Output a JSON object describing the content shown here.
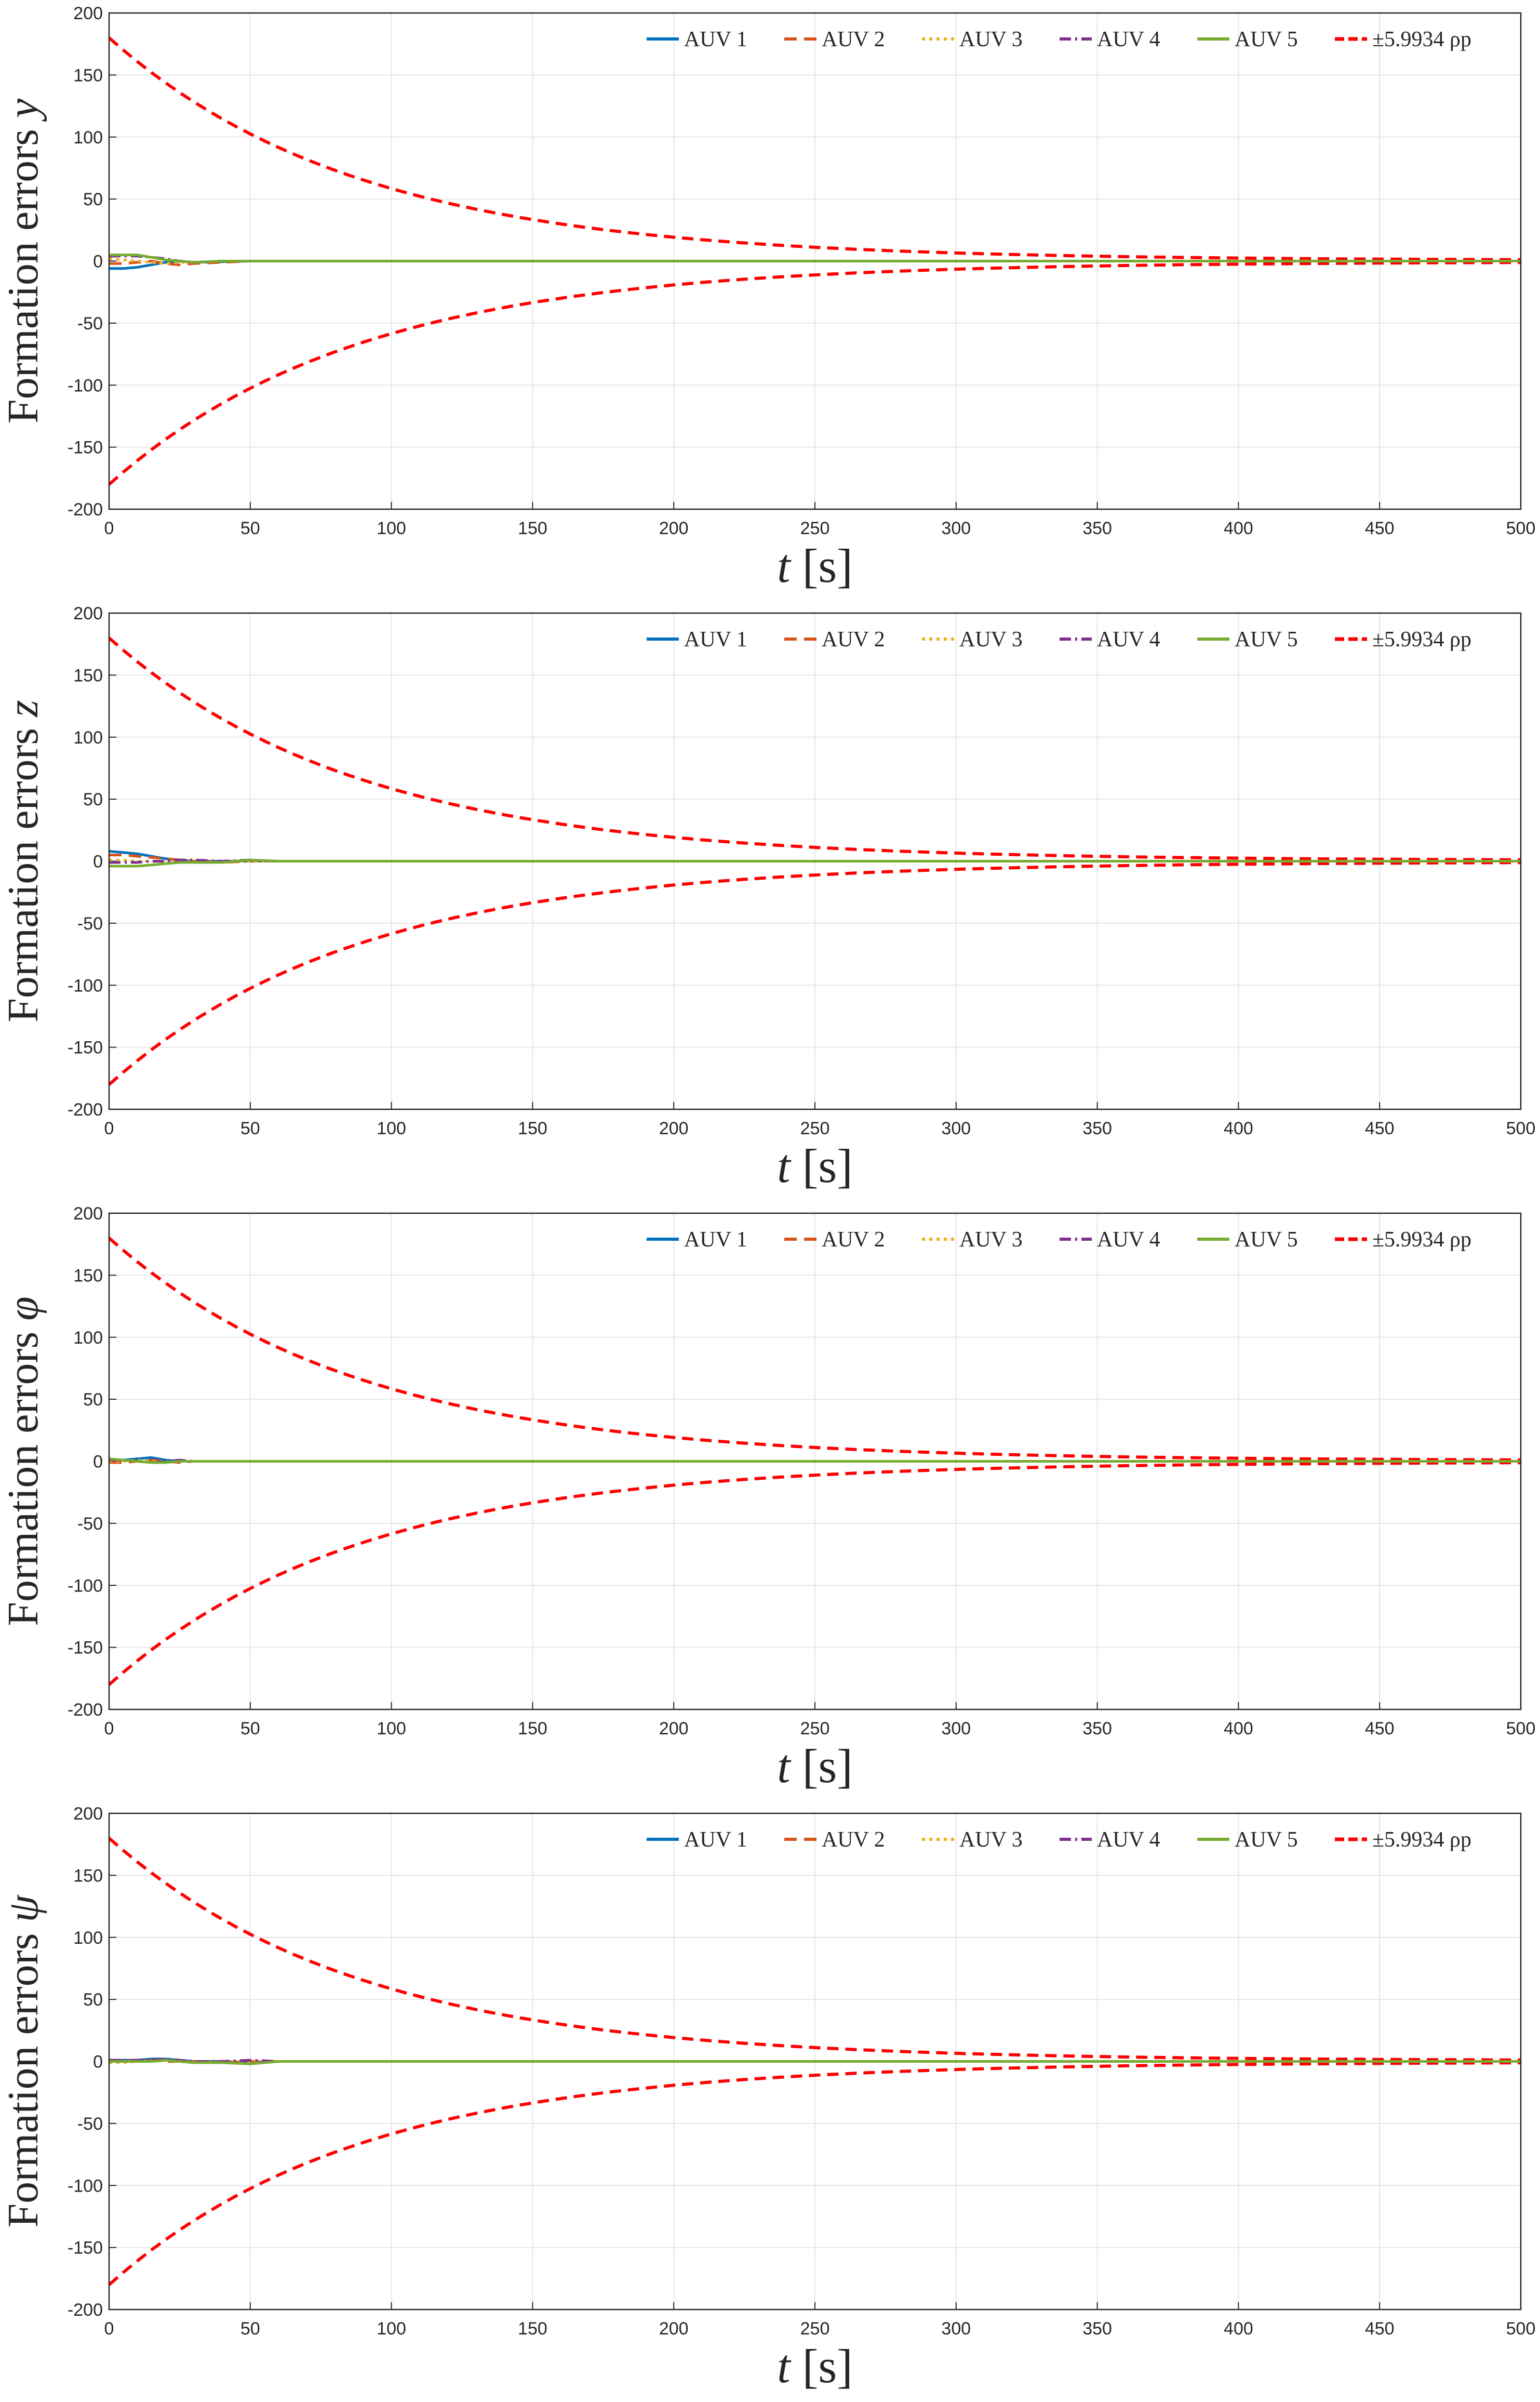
{
  "chart_data": [
    {
      "type": "line",
      "ylabel_text": "Formation errors",
      "ylabel_symbol": "y",
      "xlabel_symbol": "t",
      "xlabel_unit": "[s]",
      "xlim": [
        0,
        500
      ],
      "ylim": [
        -200,
        200
      ],
      "xticks": [
        "0",
        "50",
        "100",
        "150",
        "200",
        "250",
        "300",
        "350",
        "400",
        "450",
        "500"
      ],
      "yticks": [
        "200",
        "150",
        "100",
        "50",
        "0",
        "-50",
        "-100",
        "-150",
        "-200"
      ],
      "grid": true,
      "legend_position": "top-right",
      "legend": [
        "AUV 1",
        "AUV 2",
        "AUV 3",
        "AUV 4",
        "AUV 5",
        "±5.9934 ρp"
      ],
      "bound": {
        "initial": 180,
        "decay_rate": 0.0113,
        "final": 0.5
      },
      "series": [
        {
          "name": "AUV 1",
          "x": [
            0,
            5,
            10,
            15,
            20,
            25,
            30,
            40,
            50,
            60,
            500
          ],
          "y": [
            -6,
            -6,
            -5,
            -3,
            -1,
            0,
            -1,
            -0.5,
            0,
            0,
            0
          ]
        },
        {
          "name": "AUV 2",
          "x": [
            0,
            5,
            10,
            15,
            20,
            25,
            30,
            40,
            50,
            60,
            500
          ],
          "y": [
            -2,
            -2,
            -1,
            0,
            -2,
            -3,
            -2,
            -1,
            0,
            0,
            0
          ]
        },
        {
          "name": "AUV 3",
          "x": [
            0,
            5,
            10,
            15,
            20,
            25,
            30,
            40,
            50,
            60,
            500
          ],
          "y": [
            2,
            1,
            0,
            -1,
            -2,
            -1,
            -1,
            0,
            0,
            0,
            0
          ]
        },
        {
          "name": "AUV 4",
          "x": [
            0,
            5,
            10,
            15,
            20,
            25,
            30,
            40,
            50,
            60,
            500
          ],
          "y": [
            4,
            4,
            4,
            3,
            2,
            0,
            -1,
            0,
            0,
            0,
            0
          ]
        },
        {
          "name": "AUV 5",
          "x": [
            0,
            5,
            10,
            15,
            20,
            25,
            30,
            40,
            50,
            60,
            500
          ],
          "y": [
            5,
            5,
            5,
            3,
            1,
            0,
            -1,
            0,
            0,
            0,
            0
          ]
        }
      ]
    },
    {
      "type": "line",
      "ylabel_text": "Formation errors",
      "ylabel_symbol": "z",
      "xlabel_symbol": "t",
      "xlabel_unit": "[s]",
      "xlim": [
        0,
        500
      ],
      "ylim": [
        -200,
        200
      ],
      "xticks": [
        "0",
        "50",
        "100",
        "150",
        "200",
        "250",
        "300",
        "350",
        "400",
        "450",
        "500"
      ],
      "yticks": [
        "200",
        "150",
        "100",
        "50",
        "0",
        "-50",
        "-100",
        "-150",
        "-200"
      ],
      "grid": true,
      "legend_position": "top-right",
      "legend": [
        "AUV 1",
        "AUV 2",
        "AUV 3",
        "AUV 4",
        "AUV 5",
        "±5.9934 ρp"
      ],
      "bound": {
        "initial": 180,
        "decay_rate": 0.0113,
        "final": 0.5
      },
      "series": [
        {
          "name": "AUV 1",
          "x": [
            0,
            5,
            10,
            15,
            20,
            25,
            30,
            40,
            50,
            60,
            70,
            500
          ],
          "y": [
            8,
            7,
            6,
            4,
            2,
            1,
            0,
            0,
            0,
            0,
            0,
            0
          ]
        },
        {
          "name": "AUV 2",
          "x": [
            0,
            5,
            10,
            15,
            20,
            25,
            30,
            40,
            50,
            60,
            70,
            500
          ],
          "y": [
            5,
            5,
            4,
            3,
            2,
            1,
            0,
            -1,
            0,
            0,
            0,
            0
          ]
        },
        {
          "name": "AUV 3",
          "x": [
            0,
            5,
            10,
            15,
            20,
            25,
            30,
            40,
            50,
            60,
            70,
            500
          ],
          "y": [
            1,
            1,
            0,
            0,
            -1,
            0,
            1,
            0,
            0,
            0,
            0,
            0
          ]
        },
        {
          "name": "AUV 4",
          "x": [
            0,
            5,
            10,
            15,
            20,
            25,
            30,
            40,
            50,
            60,
            70,
            500
          ],
          "y": [
            -1,
            -1,
            -1,
            0,
            0,
            1,
            1,
            0,
            1,
            0,
            0,
            0
          ]
        },
        {
          "name": "AUV 5",
          "x": [
            0,
            5,
            10,
            15,
            20,
            25,
            30,
            40,
            50,
            60,
            70,
            500
          ],
          "y": [
            -4,
            -4,
            -4,
            -3,
            -2,
            -1,
            -1,
            -1,
            1,
            0,
            0,
            0
          ]
        }
      ]
    },
    {
      "type": "line",
      "ylabel_text": "Formation errors",
      "ylabel_symbol": "φ",
      "xlabel_symbol": "t",
      "xlabel_unit": "[s]",
      "xlim": [
        0,
        500
      ],
      "ylim": [
        -200,
        200
      ],
      "xticks": [
        "0",
        "50",
        "100",
        "150",
        "200",
        "250",
        "300",
        "350",
        "400",
        "450",
        "500"
      ],
      "yticks": [
        "200",
        "150",
        "100",
        "50",
        "0",
        "-50",
        "-100",
        "-150",
        "-200"
      ],
      "grid": true,
      "legend_position": "top-right",
      "legend": [
        "AUV 1",
        "AUV 2",
        "AUV 3",
        "AUV 4",
        "AUV 5",
        "±5.9934 ρp"
      ],
      "bound": {
        "initial": 180,
        "decay_rate": 0.0113,
        "final": 0.5
      },
      "series": [
        {
          "name": "AUV 1",
          "x": [
            0,
            5,
            10,
            15,
            20,
            25,
            30,
            40,
            500
          ],
          "y": [
            1,
            1,
            2,
            3,
            1,
            0,
            0,
            0,
            0
          ]
        },
        {
          "name": "AUV 2",
          "x": [
            0,
            5,
            10,
            15,
            20,
            25,
            30,
            40,
            500
          ],
          "y": [
            -1,
            -1,
            0,
            1,
            0,
            -1,
            0,
            0,
            0
          ]
        },
        {
          "name": "AUV 3",
          "x": [
            0,
            5,
            10,
            15,
            20,
            25,
            30,
            40,
            500
          ],
          "y": [
            0,
            0,
            1,
            0,
            0,
            0,
            0,
            0,
            0
          ]
        },
        {
          "name": "AUV 4",
          "x": [
            0,
            5,
            10,
            15,
            20,
            25,
            30,
            40,
            500
          ],
          "y": [
            1,
            1,
            0,
            -1,
            0,
            1,
            0,
            0,
            0
          ]
        },
        {
          "name": "AUV 5",
          "x": [
            0,
            5,
            10,
            15,
            20,
            25,
            30,
            40,
            500
          ],
          "y": [
            2,
            1,
            0,
            -1,
            -1,
            0,
            0,
            0,
            0
          ]
        }
      ]
    },
    {
      "type": "line",
      "ylabel_text": "Formation errors",
      "ylabel_symbol": "ψ",
      "xlabel_symbol": "t",
      "xlabel_unit": "[s]",
      "xlim": [
        0,
        500
      ],
      "ylim": [
        -200,
        200
      ],
      "xticks": [
        "0",
        "50",
        "100",
        "150",
        "200",
        "250",
        "300",
        "350",
        "400",
        "450",
        "500"
      ],
      "yticks": [
        "200",
        "150",
        "100",
        "50",
        "0",
        "-50",
        "-100",
        "-150",
        "-200"
      ],
      "grid": true,
      "legend_position": "top-right",
      "legend": [
        "AUV 1",
        "AUV 2",
        "AUV 3",
        "AUV 4",
        "AUV 5",
        "±5.9934 ρp"
      ],
      "bound": {
        "initial": 180,
        "decay_rate": 0.0113,
        "final": 0.5
      },
      "series": [
        {
          "name": "AUV 1",
          "x": [
            0,
            5,
            10,
            15,
            20,
            25,
            30,
            40,
            50,
            60,
            500
          ],
          "y": [
            1,
            1,
            1,
            2,
            2,
            1,
            0,
            0,
            -1,
            0,
            0
          ]
        },
        {
          "name": "AUV 2",
          "x": [
            0,
            5,
            10,
            15,
            20,
            25,
            30,
            40,
            50,
            60,
            500
          ],
          "y": [
            0,
            0,
            1,
            1,
            0,
            0,
            0,
            -1,
            0,
            0,
            0
          ]
        },
        {
          "name": "AUV 3",
          "x": [
            0,
            5,
            10,
            15,
            20,
            25,
            30,
            40,
            50,
            60,
            500
          ],
          "y": [
            -1,
            -1,
            0,
            1,
            1,
            0,
            -1,
            0,
            0,
            0,
            0
          ]
        },
        {
          "name": "AUV 4",
          "x": [
            0,
            5,
            10,
            15,
            20,
            25,
            30,
            40,
            50,
            60,
            500
          ],
          "y": [
            1,
            1,
            1,
            1,
            2,
            1,
            0,
            0,
            1,
            0,
            0
          ]
        },
        {
          "name": "AUV 5",
          "x": [
            0,
            5,
            10,
            15,
            20,
            25,
            30,
            40,
            50,
            60,
            500
          ],
          "y": [
            0,
            0,
            0,
            0,
            1,
            0,
            -1,
            -1,
            -2,
            0,
            0
          ]
        }
      ]
    }
  ]
}
